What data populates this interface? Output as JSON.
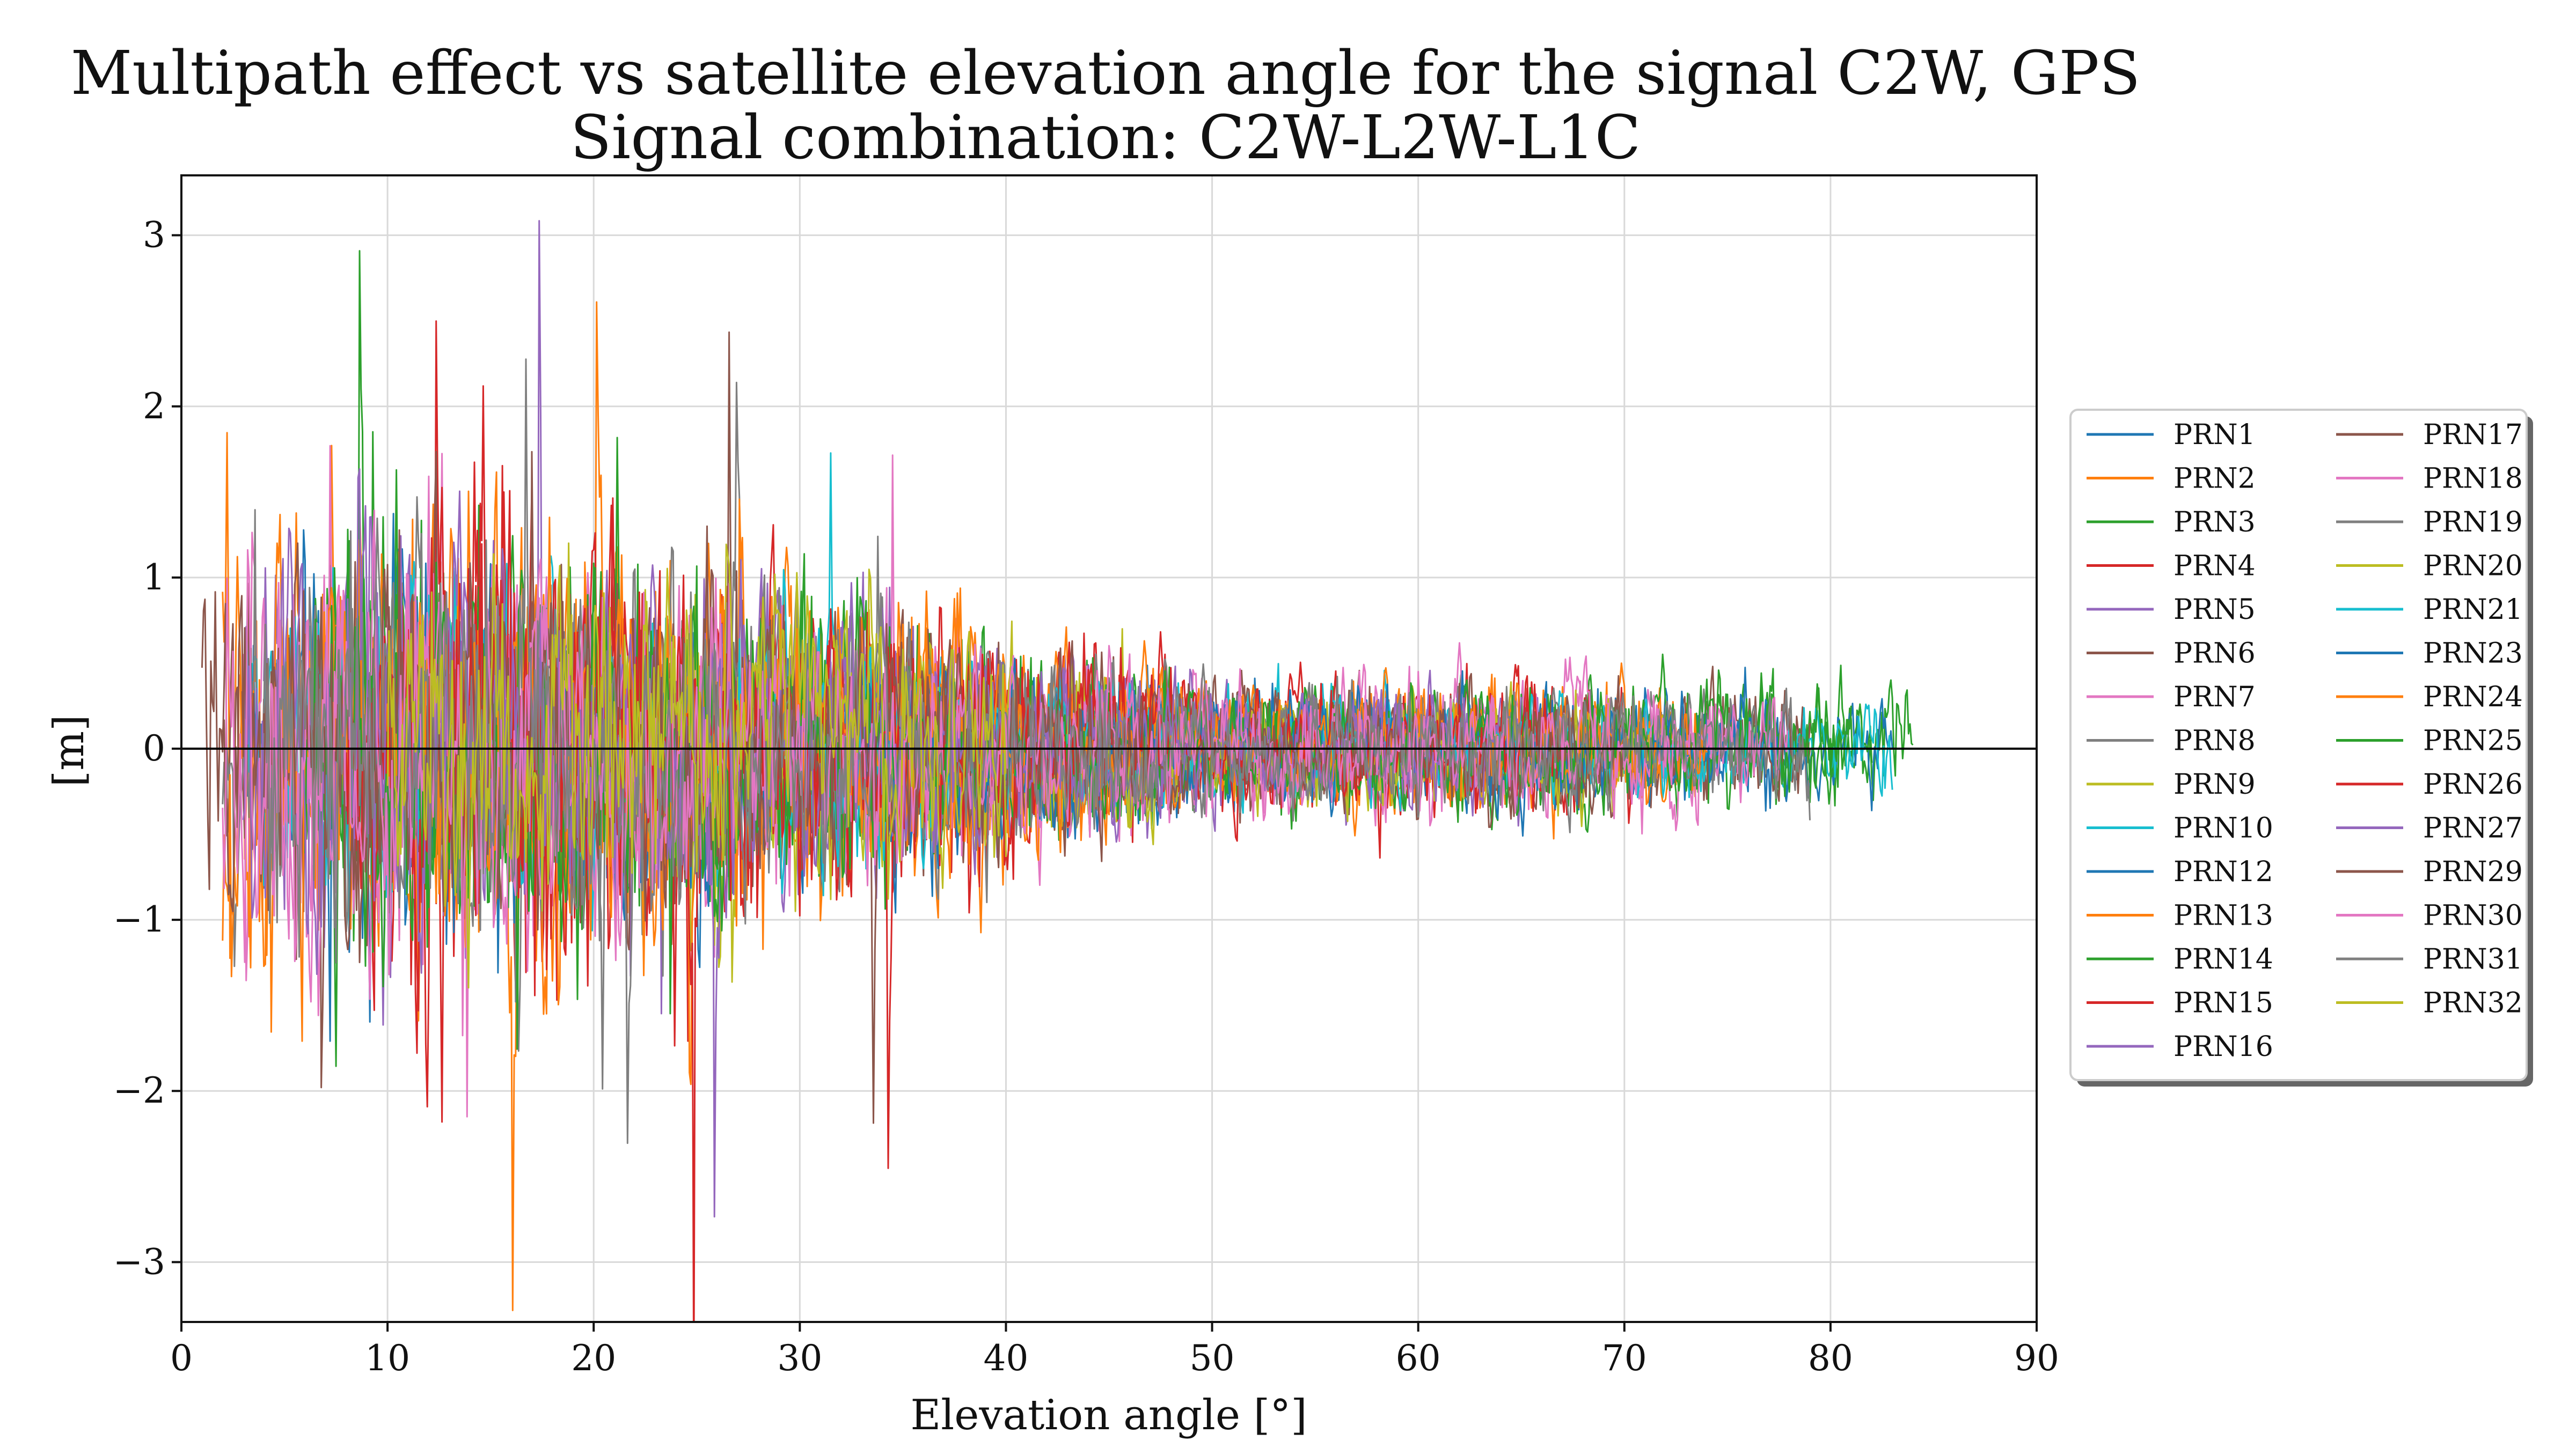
{
  "chart_data": {
    "type": "line",
    "title": "Multipath effect vs satellite elevation angle for the signal C2W, GPS",
    "subtitle": "Signal combination: C2W-L2W-L1C",
    "xlabel": "Elevation angle [°]",
    "ylabel": "[m]",
    "xlim": [
      0,
      90
    ],
    "ylim": [
      -3.35,
      3.35
    ],
    "xticks": [
      0,
      10,
      20,
      30,
      40,
      50,
      60,
      70,
      80,
      90
    ],
    "yticks": [
      -3,
      -2,
      -1,
      0,
      1,
      2,
      3
    ],
    "ytick_labels": [
      "−3",
      "−2",
      "−1",
      "0",
      "1",
      "2",
      "3"
    ],
    "grid": true,
    "reference_line_y": 0,
    "legend_position": "right",
    "series": [
      {
        "name": "PRN1",
        "color": "#1f77b4",
        "x_range": [
          3,
          53
        ],
        "amp_low": 1.0,
        "amp_high": 0.35
      },
      {
        "name": "PRN2",
        "color": "#ff7f0e",
        "x_range": [
          2,
          74
        ],
        "amp_low": 1.4,
        "amp_high": 0.3
      },
      {
        "name": "PRN3",
        "color": "#2ca02c",
        "x_range": [
          6,
          84
        ],
        "amp_low": 1.2,
        "amp_high": 0.3
      },
      {
        "name": "PRN4",
        "color": "#d62728",
        "x_range": [
          9,
          71
        ],
        "amp_low": 1.6,
        "amp_high": 0.35
      },
      {
        "name": "PRN5",
        "color": "#9467bd",
        "x_range": [
          4,
          66
        ],
        "amp_low": 1.1,
        "amp_high": 0.3
      },
      {
        "name": "PRN6",
        "color": "#8c564b",
        "x_range": [
          22,
          79
        ],
        "amp_low": 1.2,
        "amp_high": 0.3
      },
      {
        "name": "PRN7",
        "color": "#e377c2",
        "x_range": [
          3,
          68
        ],
        "amp_low": 1.2,
        "amp_high": 0.35
      },
      {
        "name": "PRN8",
        "color": "#7f7f7f",
        "x_range": [
          14,
          76
        ],
        "amp_low": 1.3,
        "amp_high": 0.3
      },
      {
        "name": "PRN9",
        "color": "#bcbd22",
        "x_range": [
          22,
          47
        ],
        "amp_low": 1.1,
        "amp_high": 0.4
      },
      {
        "name": "PRN10",
        "color": "#17becf",
        "x_range": [
          3,
          62
        ],
        "amp_low": 1.0,
        "amp_high": 0.3
      },
      {
        "name": "PRN12",
        "color": "#1f77b4",
        "x_range": [
          10,
          83
        ],
        "amp_low": 1.2,
        "amp_high": 0.25
      },
      {
        "name": "PRN13",
        "color": "#ff7f0e",
        "x_range": [
          11,
          72
        ],
        "amp_low": 1.5,
        "amp_high": 0.3
      },
      {
        "name": "PRN14",
        "color": "#2ca02c",
        "x_range": [
          7,
          82
        ],
        "amp_low": 1.2,
        "amp_high": 0.3
      },
      {
        "name": "PRN15",
        "color": "#d62728",
        "x_range": [
          12,
          66
        ],
        "amp_low": 1.5,
        "amp_high": 0.3
      },
      {
        "name": "PRN16",
        "color": "#9467bd",
        "x_range": [
          15,
          65
        ],
        "amp_low": 1.3,
        "amp_high": 0.3
      },
      {
        "name": "PRN17",
        "color": "#8c564b",
        "x_range": [
          1,
          79
        ],
        "amp_low": 1.0,
        "amp_high": 0.3
      },
      {
        "name": "PRN18",
        "color": "#e377c2",
        "x_range": [
          5,
          75
        ],
        "amp_low": 1.1,
        "amp_high": 0.3
      },
      {
        "name": "PRN19",
        "color": "#7f7f7f",
        "x_range": [
          2,
          70
        ],
        "amp_low": 1.0,
        "amp_high": 0.3
      },
      {
        "name": "PRN20",
        "color": "#bcbd22",
        "x_range": [
          22,
          72
        ],
        "amp_low": 1.1,
        "amp_high": 0.3
      },
      {
        "name": "PRN21",
        "color": "#17becf",
        "x_range": [
          26,
          83
        ],
        "amp_low": 1.0,
        "amp_high": 0.25
      },
      {
        "name": "PRN23",
        "color": "#1f77b4",
        "x_range": [
          33,
          78
        ],
        "amp_low": 0.9,
        "amp_high": 0.3
      },
      {
        "name": "PRN24",
        "color": "#ff7f0e",
        "x_range": [
          2,
          74
        ],
        "amp_low": 1.1,
        "amp_high": 0.3
      },
      {
        "name": "PRN25",
        "color": "#2ca02c",
        "x_range": [
          6,
          81
        ],
        "amp_low": 1.2,
        "amp_high": 0.3
      },
      {
        "name": "PRN26",
        "color": "#d62728",
        "x_range": [
          8,
          67
        ],
        "amp_low": 1.3,
        "amp_high": 0.3
      },
      {
        "name": "PRN27",
        "color": "#9467bd",
        "x_range": [
          3,
          64
        ],
        "amp_low": 1.0,
        "amp_high": 0.3
      },
      {
        "name": "PRN29",
        "color": "#8c564b",
        "x_range": [
          2,
          70
        ],
        "amp_low": 1.1,
        "amp_high": 0.3
      },
      {
        "name": "PRN30",
        "color": "#e377c2",
        "x_range": [
          2,
          78
        ],
        "amp_low": 1.1,
        "amp_high": 0.3
      },
      {
        "name": "PRN31",
        "color": "#7f7f7f",
        "x_range": [
          4,
          79
        ],
        "amp_low": 1.1,
        "amp_high": 0.3
      },
      {
        "name": "PRN32",
        "color": "#bcbd22",
        "x_range": [
          10,
          40
        ],
        "amp_low": 1.1,
        "amp_high": 0.5
      }
    ]
  }
}
